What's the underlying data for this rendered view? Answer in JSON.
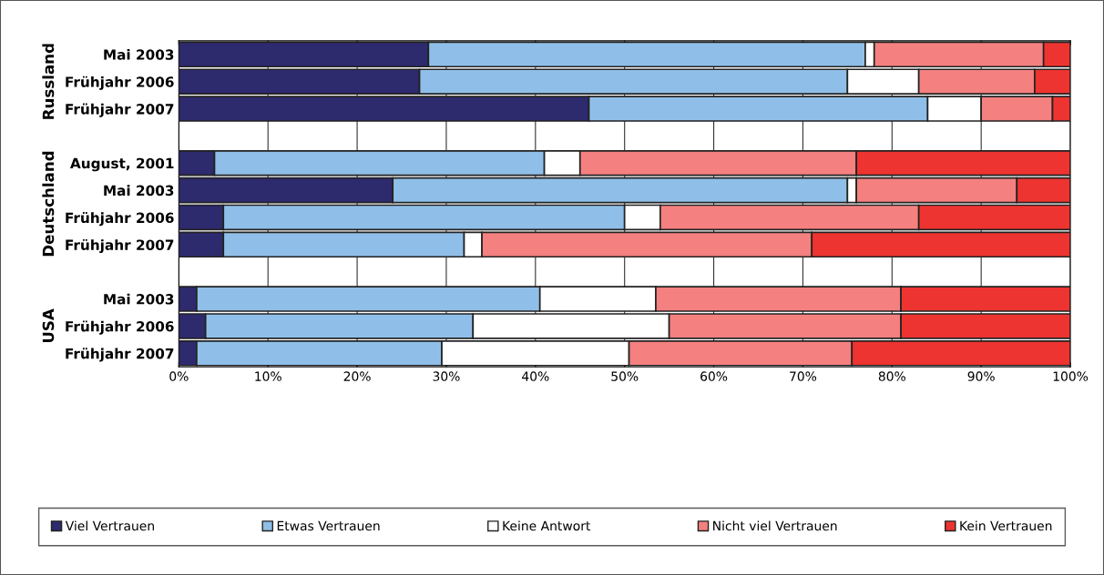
{
  "chart_data": {
    "type": "bar",
    "orientation": "horizontal",
    "stacked": true,
    "categories": [
      "Mai 2003",
      "Frühjahr 2006",
      "Frühjahr 2007",
      null,
      "August, 2001",
      "Mai 2003",
      "Frühjahr 2006",
      "Frühjahr 2007",
      null,
      "Mai 2003",
      "Frühjahr 2006",
      "Frühjahr 2007"
    ],
    "series": [
      {
        "name": "Viel Vertrauen",
        "color": "#2e2a6e",
        "values": [
          28,
          27,
          46,
          null,
          4,
          24,
          5,
          5,
          null,
          2,
          3,
          2
        ]
      },
      {
        "name": "Etwas Vertrauen",
        "color": "#8fbfe8",
        "values": [
          49,
          48,
          38,
          null,
          37,
          51,
          45,
          27,
          null,
          38.5,
          30,
          27.5
        ]
      },
      {
        "name": "Keine Antwort",
        "color": "#ffffff",
        "values": [
          1,
          8,
          6,
          null,
          4,
          1,
          4,
          2,
          null,
          13,
          22,
          21
        ]
      },
      {
        "name": "Nicht viel Vertrauen",
        "color": "#f48080",
        "values": [
          19,
          13,
          8,
          null,
          31,
          18,
          29,
          37,
          null,
          27.5,
          26,
          25
        ]
      },
      {
        "name": "Kein Vertrauen",
        "color": "#ee3430",
        "values": [
          3,
          4,
          2,
          null,
          24,
          6,
          17,
          29,
          null,
          19,
          19,
          24.5
        ]
      }
    ],
    "xlim": [
      0,
      100
    ],
    "xticks": [
      {
        "value": 0,
        "label": "0%"
      },
      {
        "value": 10,
        "label": "10%"
      },
      {
        "value": 20,
        "label": "20%"
      },
      {
        "value": 30,
        "label": "30%"
      },
      {
        "value": 40,
        "label": "40%"
      },
      {
        "value": 50,
        "label": "50%"
      },
      {
        "value": 60,
        "label": "60%"
      },
      {
        "value": 70,
        "label": "70%"
      },
      {
        "value": 80,
        "label": "80%"
      },
      {
        "value": 90,
        "label": "90%"
      },
      {
        "value": 100,
        "label": "100%"
      }
    ],
    "annotations": [
      "Russland",
      "Deutschland",
      "USA"
    ],
    "grid": "x",
    "legend": "bottom"
  }
}
